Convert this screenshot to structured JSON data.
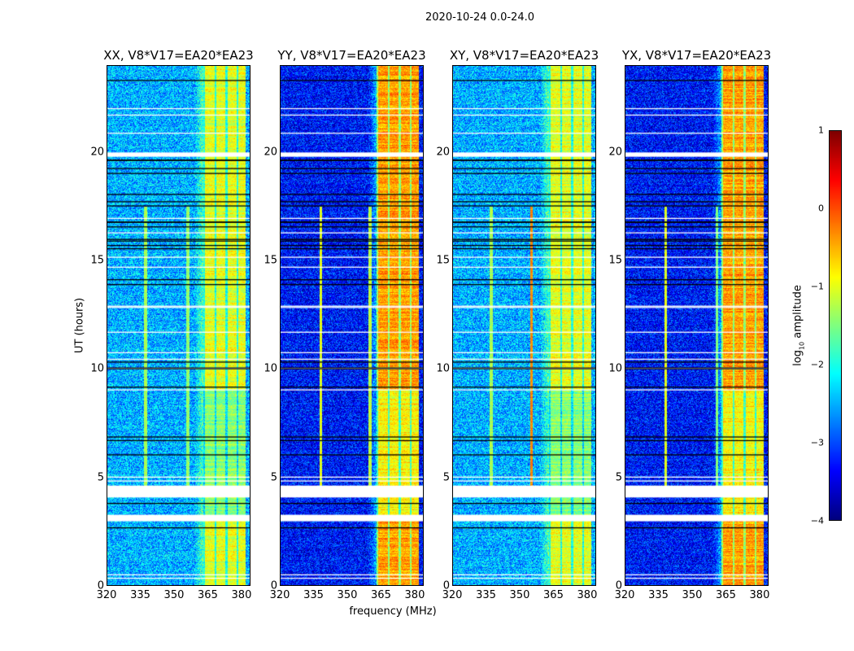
{
  "chart_data": {
    "type": "heatmap",
    "title": "2020-10-24 0.0-24.0",
    "xlabel": "frequency (MHz)",
    "ylabel": "UT (hours)",
    "xlim": [
      320,
      384
    ],
    "ylim": [
      0,
      24
    ],
    "xticks": [
      "320",
      "335",
      "350",
      "365",
      "380"
    ],
    "xtick_values": [
      320,
      335,
      350,
      365,
      380
    ],
    "yticks": [
      "0",
      "5",
      "10",
      "15",
      "20"
    ],
    "ytick_values": [
      0,
      5,
      10,
      15,
      20
    ],
    "colorbar": {
      "label_main": "log",
      "label_sub": "10",
      "label_rest": " amplitude",
      "range": [
        -4,
        1
      ],
      "ticks": [
        "1",
        "0",
        "−1",
        "−2",
        "−3",
        "−4"
      ],
      "tick_values": [
        1,
        0,
        -1,
        -2,
        -3,
        -4
      ],
      "colormap": "jet"
    },
    "panels": [
      {
        "title": "XX, V8*V17=EA20*EA23",
        "baseline": -2.5,
        "band_level": -1.0,
        "rfi": [
          {
            "f": 337,
            "level": -1.3
          },
          {
            "f": 356,
            "level": -1.4
          }
        ]
      },
      {
        "title": "YY, V8*V17=EA20*EA23",
        "baseline": -3.3,
        "band_level": -0.4,
        "rfi": [
          {
            "f": 338,
            "level": -1.0
          },
          {
            "f": 360,
            "level": -1.2
          }
        ]
      },
      {
        "title": "XY, V8*V17=EA20*EA23",
        "baseline": -2.5,
        "band_level": -1.0,
        "rfi": [
          {
            "f": 337,
            "level": -1.3
          },
          {
            "f": 355,
            "level": -0.3
          }
        ]
      },
      {
        "title": "YX, V8*V17=EA20*EA23",
        "baseline": -3.3,
        "band_level": -0.4,
        "rfi": [
          {
            "f": 338,
            "level": -1.0
          },
          {
            "f": 361,
            "level": -1.5
          }
        ]
      }
    ],
    "band_mhz": [
      363,
      382
    ],
    "flagged_ut": [
      [
        2.95,
        3.25
      ],
      [
        4.05,
        4.6
      ],
      [
        19.8,
        20.0
      ]
    ],
    "grid": false
  }
}
